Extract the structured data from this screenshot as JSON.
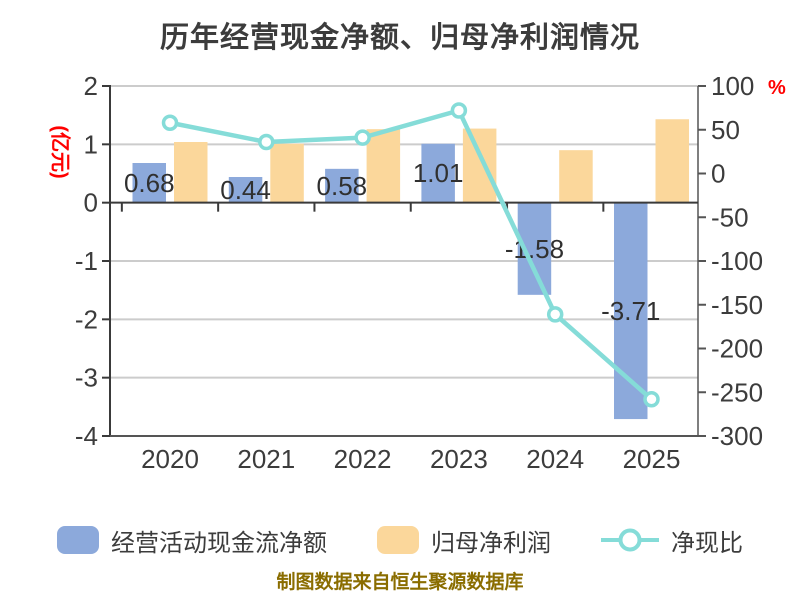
{
  "title": "历年经营现金净额、归母净利润情况",
  "caption": "制图数据来自恒生聚源数据库",
  "colors": {
    "bar_blue": "#8CA9DB",
    "bar_orange": "#FBD79B",
    "line_teal": "#85DCD8",
    "axis_text": "#3c3c3c",
    "bar_label_text": "#303030",
    "red_label": "#ff0000",
    "caption_gold": "#8a6d00",
    "gridline": "#cccccc",
    "spine": "#3a3a3a"
  },
  "left_axis": {
    "label": "(亿元)",
    "ticks": [
      2,
      1,
      0,
      -1,
      -2,
      -3,
      -4
    ]
  },
  "right_axis": {
    "label": "%",
    "ticks": [
      100,
      50,
      0,
      -50,
      -100,
      -150,
      -200,
      -250,
      -300
    ]
  },
  "legend": [
    {
      "label": "经营活动现金流净额",
      "type": "bar",
      "color": "#8CA9DB"
    },
    {
      "label": "归母净利润",
      "type": "bar",
      "color": "#FBD79B"
    },
    {
      "label": "净现比",
      "type": "line",
      "color": "#85DCD8"
    }
  ],
  "chart_data": {
    "type": "bar",
    "subtype": "grouped-bars-with-line",
    "title": "历年经营现金净额、归母净利润情况",
    "categories": [
      "2020",
      "2021",
      "2022",
      "2023",
      "2024",
      "2025"
    ],
    "series": [
      {
        "name": "经营活动现金流净额",
        "type": "bar",
        "axis": "left",
        "color": "#8CA9DB",
        "values": [
          0.68,
          0.44,
          0.58,
          1.01,
          -1.58,
          -3.71
        ],
        "value_labels": [
          "0.68",
          "0.44",
          "0.58",
          "1.01",
          "-1.58",
          "-3.71"
        ]
      },
      {
        "name": "归母净利润",
        "type": "bar",
        "axis": "left",
        "color": "#FBD79B",
        "values": [
          1.04,
          1.01,
          1.26,
          1.27,
          0.9,
          1.43
        ]
      },
      {
        "name": "净现比",
        "type": "line",
        "axis": "right",
        "color": "#85DCD8",
        "values": [
          58,
          36,
          41,
          72,
          -161,
          -258
        ]
      }
    ],
    "left_ylabel": "(亿元)",
    "right_ylabel": "%",
    "left_ylim": [
      -4,
      2
    ],
    "right_ylim": [
      -300,
      100
    ],
    "grid": true,
    "legend_position": "bottom"
  }
}
